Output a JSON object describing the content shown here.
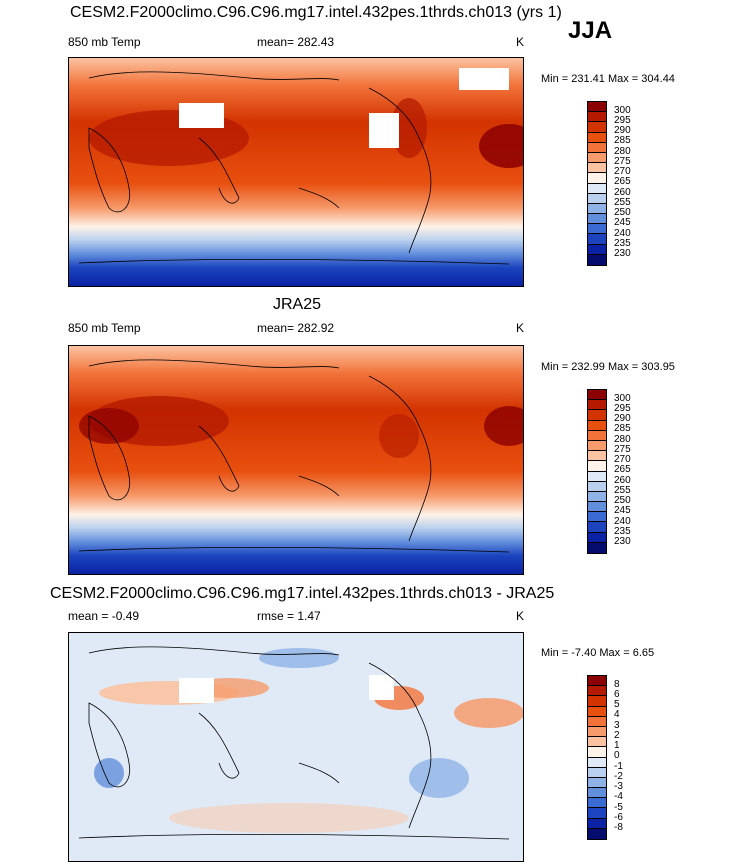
{
  "season": "JJA",
  "panels": [
    {
      "title": "CESM2.F2000climo.C96.C96.mg17.intel.432pes.1thrds.ch013 (yrs 1)",
      "left_label": "850 mb Temp",
      "center_label": "mean= 282.43",
      "units": "K",
      "minmax": "Min = 231.41 Max = 304.44",
      "colorbar_labels": [
        "300",
        "295",
        "290",
        "285",
        "280",
        "275",
        "270",
        "265",
        "260",
        "255",
        "250",
        "245",
        "240",
        "235",
        "230"
      ],
      "colorbar_colors": [
        "#8b0000",
        "#b41a00",
        "#d33300",
        "#e8500f",
        "#f2733a",
        "#f69b6c",
        "#fbc3a1",
        "#fff2e8",
        "#e0eaf6",
        "#b9d0ee",
        "#8fb3e6",
        "#628fdc",
        "#3a6bd2",
        "#1c44bf",
        "#0a22a3",
        "#040c6e"
      ]
    },
    {
      "title": "JRA25",
      "left_label": "850 mb Temp",
      "center_label": "mean= 282.92",
      "units": "K",
      "minmax": "Min = 232.99 Max = 303.95",
      "colorbar_labels": [
        "300",
        "295",
        "290",
        "285",
        "280",
        "275",
        "270",
        "265",
        "260",
        "255",
        "250",
        "245",
        "240",
        "235",
        "230"
      ],
      "colorbar_colors": [
        "#8b0000",
        "#b41a00",
        "#d33300",
        "#e8500f",
        "#f2733a",
        "#f69b6c",
        "#fbc3a1",
        "#fff2e8",
        "#e0eaf6",
        "#b9d0ee",
        "#8fb3e6",
        "#628fdc",
        "#3a6bd2",
        "#1c44bf",
        "#0a22a3",
        "#040c6e"
      ]
    },
    {
      "title": "CESM2.F2000climo.C96.C96.mg17.intel.432pes.1thrds.ch013 - JRA25",
      "left_label": "mean =  -0.49",
      "center_label": "rmse =   1.47",
      "units": "K",
      "minmax": "Min =  -7.40 Max =   6.65",
      "colorbar_labels": [
        "8",
        "6",
        "5",
        "4",
        "3",
        "2",
        "1",
        "0",
        "-1",
        "-2",
        "-3",
        "-4",
        "-5",
        "-6",
        "-8"
      ],
      "colorbar_colors": [
        "#8b0000",
        "#b41a00",
        "#d33300",
        "#e8500f",
        "#f2733a",
        "#f69b6c",
        "#fbc3a1",
        "#fff2e8",
        "#e0eaf6",
        "#b9d0ee",
        "#8fb3e6",
        "#628fdc",
        "#3a6bd2",
        "#1c44bf",
        "#0a22a3",
        "#040c6e"
      ]
    }
  ]
}
